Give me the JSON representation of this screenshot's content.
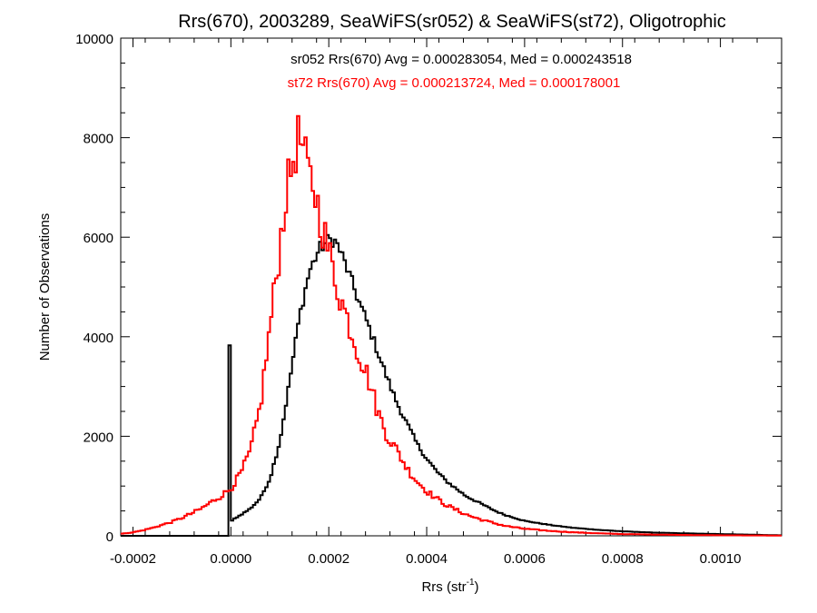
{
  "chart_data": {
    "type": "line",
    "title": "Rrs(670), 2003289, SeaWiFS(sr052) & SeaWiFS(st72), Oligotrophic",
    "xlabel_main": "Rrs (str",
    "xlabel_sup": "-1",
    "xlabel_close": ")",
    "ylabel": "Number of Observations",
    "xlim": [
      -0.000225,
      0.001125
    ],
    "ylim": [
      0,
      10000
    ],
    "xticks": [
      -0.0002,
      0.0,
      0.0002,
      0.0004,
      0.0006,
      0.0008,
      0.001
    ],
    "xtick_labels": [
      "-0.0002",
      "0.0000",
      "0.0002",
      "0.0004",
      "0.0006",
      "0.0008",
      "0.0010"
    ],
    "yticks": [
      0,
      2000,
      4000,
      6000,
      8000,
      10000
    ],
    "ytick_labels": [
      "0",
      "2000",
      "4000",
      "6000",
      "8000",
      "10000"
    ],
    "x_minor_step": 5e-05,
    "y_minor_step": 500,
    "grid": false,
    "series": [
      {
        "name": "sr052",
        "color": "#000000",
        "annotation": "sr052 Rrs(670) Avg = 0.000283054, Med = 0.000243518",
        "x": [
          -0.000225,
          -2.5e-06,
          -2.5e-06,
          2.5e-06,
          8e-06,
          2e-05,
          4e-05,
          6e-05,
          8e-05,
          0.0001,
          0.00012,
          0.00014,
          0.00016,
          0.00018,
          0.0002,
          0.00021,
          0.00022,
          0.00024,
          0.00026,
          0.00028,
          0.0003,
          0.00032,
          0.00034,
          0.00036,
          0.00038,
          0.0004,
          0.00042,
          0.00044,
          0.00046,
          0.00048,
          0.0005,
          0.00052,
          0.00054,
          0.00056,
          0.00058,
          0.0006,
          0.00065,
          0.0007,
          0.00075,
          0.0008,
          0.00085,
          0.0009,
          0.00095,
          0.001,
          0.00105,
          0.0011,
          0.001125
        ],
        "y": [
          0,
          0,
          3820,
          300,
          350,
          420,
          550,
          750,
          1150,
          1900,
          3100,
          4400,
          5300,
          5750,
          5950,
          5950,
          5800,
          5300,
          4750,
          4250,
          3700,
          3150,
          2650,
          2250,
          1850,
          1550,
          1300,
          1100,
          950,
          800,
          700,
          600,
          500,
          420,
          360,
          300,
          220,
          160,
          120,
          90,
          70,
          55,
          45,
          35,
          25,
          15,
          10
        ]
      },
      {
        "name": "st72",
        "color": "#ff0000",
        "annotation": "st72 Rrs(670) Avg = 0.000213724, Med = 0.000178001",
        "x": [
          -0.000225,
          -0.0002,
          -0.00018,
          -0.00016,
          -0.00014,
          -0.00012,
          -0.0001,
          -8e-05,
          -6e-05,
          -4e-05,
          -2e-05,
          0.0,
          2e-05,
          4e-05,
          6e-05,
          8e-05,
          0.0001,
          0.00011,
          0.00012,
          0.00013,
          0.00014,
          0.00015,
          0.00016,
          0.00017,
          0.00018,
          0.00019,
          0.0002,
          0.00021,
          0.00022,
          0.00024,
          0.00026,
          0.00028,
          0.0003,
          0.00032,
          0.00034,
          0.00036,
          0.00038,
          0.0004,
          0.00042,
          0.00044,
          0.00046,
          0.00048,
          0.0005,
          0.00052,
          0.00054,
          0.00056,
          0.00058,
          0.0006,
          0.00065,
          0.0007,
          0.00075,
          0.0008,
          0.0009,
          0.001,
          0.001125
        ],
        "y": [
          40,
          70,
          110,
          160,
          220,
          280,
          360,
          450,
          550,
          680,
          800,
          950,
          1250,
          1700,
          2600,
          4200,
          5800,
          6700,
          7200,
          7700,
          8050,
          7600,
          7200,
          7000,
          6500,
          6100,
          5700,
          5300,
          4900,
          4300,
          3700,
          3200,
          2500,
          2000,
          1700,
          1350,
          1100,
          900,
          750,
          620,
          520,
          430,
          360,
          300,
          250,
          200,
          170,
          140,
          100,
          70,
          50,
          35,
          20,
          10,
          5
        ]
      }
    ]
  }
}
